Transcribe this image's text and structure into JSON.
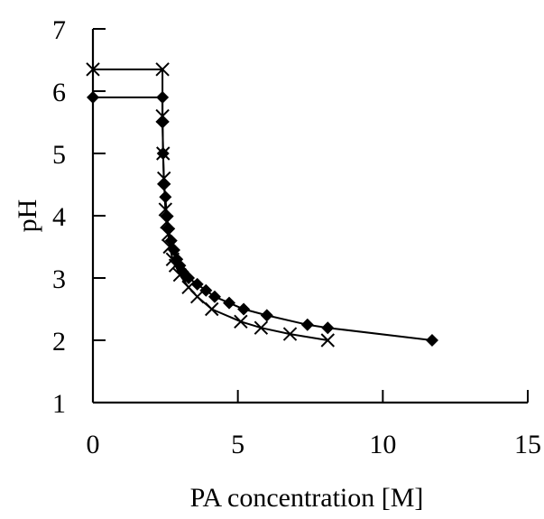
{
  "chart_data": {
    "type": "scatter",
    "title": "",
    "xlabel": "PA concentration [M]",
    "ylabel": "pH",
    "xlim": [
      0,
      15
    ],
    "ylim": [
      1,
      7
    ],
    "x_ticks": [
      "0",
      "5",
      "10",
      "15"
    ],
    "y_ticks": [
      "1",
      "2",
      "3",
      "4",
      "5",
      "6",
      "7"
    ],
    "grid": false,
    "legend": "none",
    "series": [
      {
        "marker": "diamond",
        "color": "#000000",
        "points": [
          [
            0,
            5.9
          ],
          [
            2.4,
            5.9
          ],
          [
            2.4,
            5.5
          ],
          [
            2.42,
            5.0
          ],
          [
            2.45,
            4.5
          ],
          [
            2.5,
            4.3
          ],
          [
            2.55,
            4.0
          ],
          [
            2.6,
            3.8
          ],
          [
            2.7,
            3.6
          ],
          [
            2.8,
            3.45
          ],
          [
            2.9,
            3.3
          ],
          [
            3.0,
            3.2
          ],
          [
            3.1,
            3.1
          ],
          [
            3.3,
            3.0
          ],
          [
            3.6,
            2.9
          ],
          [
            3.9,
            2.8
          ],
          [
            4.2,
            2.7
          ],
          [
            4.7,
            2.6
          ],
          [
            5.2,
            2.5
          ],
          [
            6.0,
            2.4
          ],
          [
            7.4,
            2.25
          ],
          [
            8.1,
            2.2
          ],
          [
            11.7,
            2.0
          ]
        ]
      },
      {
        "marker": "x",
        "color": "#000000",
        "points": [
          [
            0,
            6.35
          ],
          [
            2.4,
            6.35
          ],
          [
            2.4,
            5.6
          ],
          [
            2.42,
            5.0
          ],
          [
            2.45,
            4.6
          ],
          [
            2.5,
            4.1
          ],
          [
            2.55,
            3.9
          ],
          [
            2.6,
            3.7
          ],
          [
            2.65,
            3.5
          ],
          [
            2.75,
            3.3
          ],
          [
            2.85,
            3.2
          ],
          [
            3.0,
            3.05
          ],
          [
            3.3,
            2.85
          ],
          [
            3.6,
            2.7
          ],
          [
            4.1,
            2.5
          ],
          [
            5.1,
            2.3
          ],
          [
            5.8,
            2.2
          ],
          [
            6.8,
            2.1
          ],
          [
            8.1,
            2.0
          ]
        ]
      }
    ]
  }
}
